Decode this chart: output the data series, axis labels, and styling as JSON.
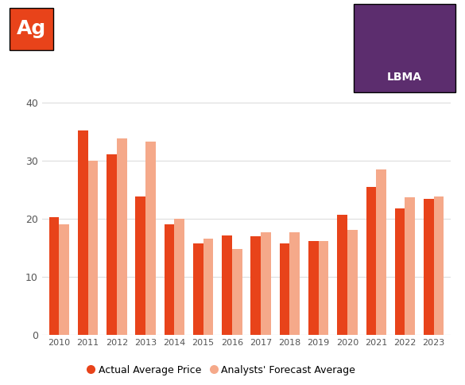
{
  "years": [
    2010,
    2011,
    2012,
    2013,
    2014,
    2015,
    2016,
    2017,
    2018,
    2019,
    2020,
    2021,
    2022,
    2023
  ],
  "actual": [
    20.2,
    35.2,
    31.1,
    23.8,
    19.0,
    15.7,
    17.1,
    17.0,
    15.7,
    16.2,
    20.6,
    25.5,
    21.7,
    23.4
  ],
  "forecast": [
    19.0,
    30.0,
    33.8,
    33.3,
    20.0,
    16.5,
    14.8,
    17.7,
    17.7,
    16.1,
    18.0,
    28.5,
    23.7,
    23.8
  ],
  "actual_color": "#E8431A",
  "forecast_color": "#F5A98A",
  "bg_color": "#ffffff",
  "grid_color": "#dddddd",
  "ylim": [
    0,
    45
  ],
  "yticks": [
    0,
    10,
    20,
    30,
    40
  ],
  "bar_width": 0.35,
  "actual_label": "Actual Average Price",
  "forecast_label": "Analysts' Forecast Average",
  "ag_box_color": "#E8431A",
  "ag_text": "Ag",
  "lbma_box_color": "#5C2D6E"
}
